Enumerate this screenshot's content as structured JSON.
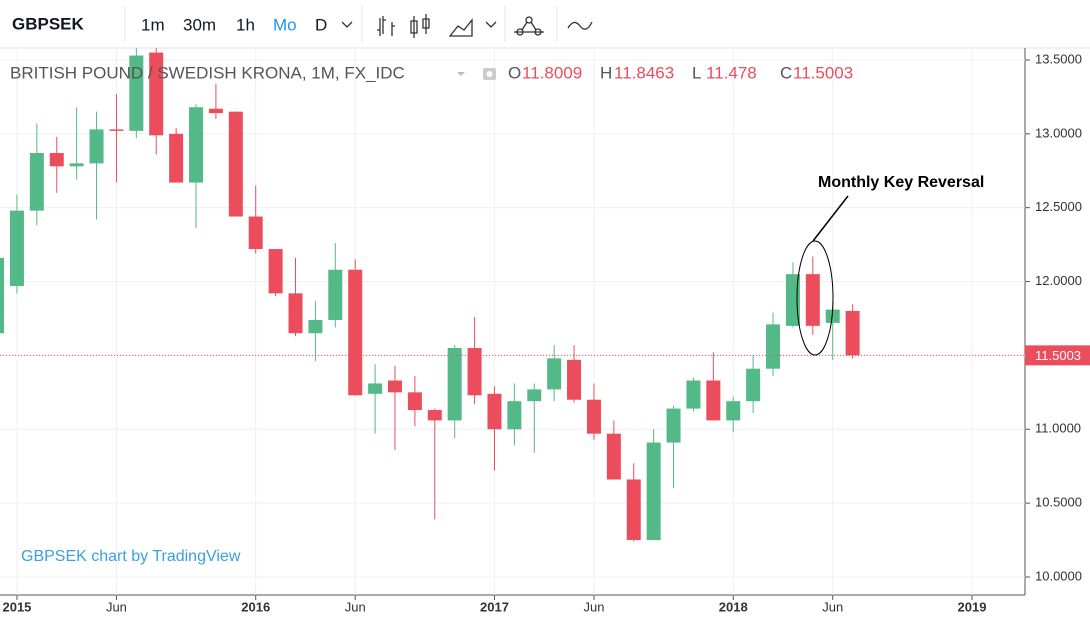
{
  "toolbar": {
    "symbol": "GBPSEK",
    "intervals": [
      "1m",
      "30m",
      "1h",
      "Mo",
      "D"
    ]
  },
  "chart_data": {
    "type": "candlestick",
    "title": "BRITISH POUND / SWEDISH KRONA, 1M, FX_IDC",
    "ohlc_labels": [
      "O",
      "H",
      "L",
      "C"
    ],
    "x": [
      2014.9167,
      2015.0,
      2015.0833,
      2015.1667,
      2015.25,
      2015.3333,
      2015.4167,
      2015.5,
      2015.5833,
      2015.6667,
      2015.75,
      2015.8333,
      2015.9167,
      2016.0,
      2016.0833,
      2016.1667,
      2016.25,
      2016.3333,
      2016.4167,
      2016.5,
      2016.5833,
      2016.6667,
      2016.75,
      2016.8333,
      2016.9167,
      2017.0,
      2017.0833,
      2017.1667,
      2017.25,
      2017.3333,
      2017.4167,
      2017.5,
      2017.5833,
      2017.6667,
      2017.75,
      2017.8333,
      2017.9167,
      2018.0,
      2018.0833,
      2018.1667,
      2018.25,
      2018.3333,
      2018.4167,
      2018.5
    ],
    "open": [
      11.65,
      11.97,
      12.48,
      12.87,
      12.78,
      12.8,
      13.03,
      13.02,
      13.55,
      13.0,
      12.67,
      13.17,
      13.15,
      12.44,
      12.22,
      11.92,
      11.65,
      11.74,
      12.08,
      11.24,
      11.33,
      11.25,
      11.13,
      11.06,
      11.55,
      11.24,
      11.0,
      11.19,
      11.27,
      11.47,
      11.2,
      10.97,
      10.66,
      10.25,
      10.91,
      11.14,
      11.33,
      11.06,
      11.19,
      11.41,
      11.7,
      12.05,
      11.72,
      11.8009
    ],
    "high": [
      12.2,
      12.59,
      13.07,
      12.98,
      13.18,
      13.15,
      13.27,
      13.6,
      13.6,
      13.04,
      13.2,
      13.34,
      13.15,
      12.65,
      12.22,
      12.16,
      11.87,
      12.26,
      12.15,
      11.44,
      11.43,
      11.36,
      11.14,
      11.57,
      11.76,
      11.29,
      11.31,
      11.31,
      11.57,
      11.57,
      11.31,
      11.06,
      10.77,
      11.0,
      11.16,
      11.35,
      11.52,
      11.22,
      11.5,
      11.79,
      12.13,
      12.17,
      11.86,
      11.8463
    ],
    "low": [
      11.6,
      11.92,
      12.38,
      12.6,
      12.69,
      12.42,
      12.67,
      12.97,
      12.86,
      12.67,
      12.36,
      13.1,
      12.44,
      12.19,
      11.9,
      11.63,
      11.46,
      11.69,
      11.23,
      10.97,
      10.86,
      11.02,
      10.39,
      10.94,
      11.17,
      10.72,
      10.89,
      10.84,
      11.19,
      11.18,
      10.93,
      10.66,
      10.24,
      10.25,
      10.6,
      11.12,
      11.06,
      10.98,
      11.11,
      11.36,
      11.69,
      11.64,
      11.47,
      11.478
    ],
    "close": [
      12.16,
      12.48,
      12.87,
      12.78,
      12.8,
      13.03,
      13.02,
      13.53,
      12.99,
      12.67,
      13.18,
      13.14,
      12.44,
      12.22,
      11.92,
      11.65,
      11.74,
      12.08,
      11.23,
      11.31,
      11.25,
      11.13,
      11.06,
      11.55,
      11.23,
      11.0,
      11.19,
      11.27,
      11.48,
      11.2,
      10.97,
      10.66,
      10.25,
      10.91,
      11.14,
      11.33,
      11.06,
      11.19,
      11.41,
      11.71,
      12.05,
      11.7,
      11.81,
      11.5003
    ],
    "up_color": "#53b987",
    "down_color": "#eb4d5c",
    "xlim": [
      2014.929,
      2019.222
    ],
    "xticks": [
      {
        "value": 2015,
        "label": "2015"
      },
      {
        "value": 2015.4167,
        "label": "Jun"
      },
      {
        "value": 2016,
        "label": "2016"
      },
      {
        "value": 2016.4167,
        "label": "Jun"
      },
      {
        "value": 2017,
        "label": "2017"
      },
      {
        "value": 2017.4167,
        "label": "Jun"
      },
      {
        "value": 2018,
        "label": "2018"
      },
      {
        "value": 2018.4167,
        "label": "Jun"
      },
      {
        "value": 2019,
        "label": "2019"
      }
    ],
    "ylim": [
      9.878,
      13.581
    ],
    "yticks": [
      {
        "value": 10,
        "label": "10.0000"
      },
      {
        "value": 10.5,
        "label": "10.5000"
      },
      {
        "value": 11,
        "label": "11.0000"
      },
      {
        "value": 11.5,
        "label": "11.5000"
      },
      {
        "value": 12,
        "label": "12.0000"
      },
      {
        "value": 12.5,
        "label": "12.5000"
      },
      {
        "value": 13,
        "label": "13.0000"
      },
      {
        "value": 13.5,
        "label": "13.5000"
      }
    ],
    "grid": true,
    "annotation": "Monthly Key Reversal",
    "watermark": "GBPSEK chart by TradingView"
  }
}
